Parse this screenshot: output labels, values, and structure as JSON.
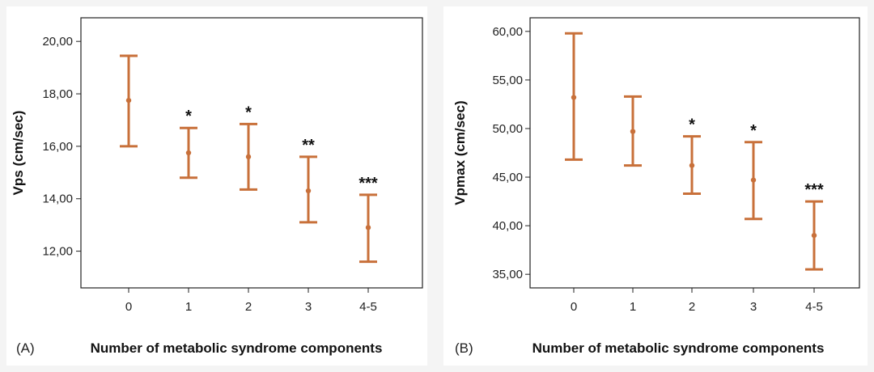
{
  "chart_data": [
    {
      "type": "errorbar",
      "panel_label": "(A)",
      "xlabel": "Number of metabolic syndrome components",
      "ylabel": "Vps (cm/sec)",
      "categories": [
        "0",
        "1",
        "2",
        "3",
        "4-5"
      ],
      "yticks": [
        "12,00",
        "14,00",
        "16,00",
        "18,00",
        "20,00"
      ],
      "ylim": [
        10.6,
        20.9
      ],
      "color": "#c8703a",
      "points": [
        {
          "category": "0",
          "mean": 17.75,
          "lower": 16.0,
          "upper": 19.45,
          "sig": ""
        },
        {
          "category": "1",
          "mean": 15.75,
          "lower": 14.8,
          "upper": 16.7,
          "sig": "*"
        },
        {
          "category": "2",
          "mean": 15.6,
          "lower": 14.35,
          "upper": 16.85,
          "sig": "*"
        },
        {
          "category": "3",
          "mean": 14.3,
          "lower": 13.1,
          "upper": 15.6,
          "sig": "**"
        },
        {
          "category": "4-5",
          "mean": 12.9,
          "lower": 11.6,
          "upper": 14.15,
          "sig": "***"
        }
      ]
    },
    {
      "type": "errorbar",
      "panel_label": "(B)",
      "xlabel": "Number of metabolic syndrome components",
      "ylabel": "Vpmax (cm/sec)",
      "categories": [
        "0",
        "1",
        "2",
        "3",
        "4-5"
      ],
      "yticks": [
        "35,00",
        "40,00",
        "45,00",
        "50,00",
        "55,00",
        "60,00"
      ],
      "ylim": [
        33.6,
        61.4
      ],
      "color": "#c8703a",
      "points": [
        {
          "category": "0",
          "mean": 53.2,
          "lower": 46.8,
          "upper": 59.8,
          "sig": ""
        },
        {
          "category": "1",
          "mean": 49.7,
          "lower": 46.2,
          "upper": 53.3,
          "sig": ""
        },
        {
          "category": "2",
          "mean": 46.2,
          "lower": 43.3,
          "upper": 49.2,
          "sig": "*"
        },
        {
          "category": "3",
          "mean": 44.7,
          "lower": 40.7,
          "upper": 48.6,
          "sig": "*"
        },
        {
          "category": "4-5",
          "mean": 39.0,
          "lower": 35.5,
          "upper": 42.5,
          "sig": "***"
        }
      ]
    }
  ]
}
